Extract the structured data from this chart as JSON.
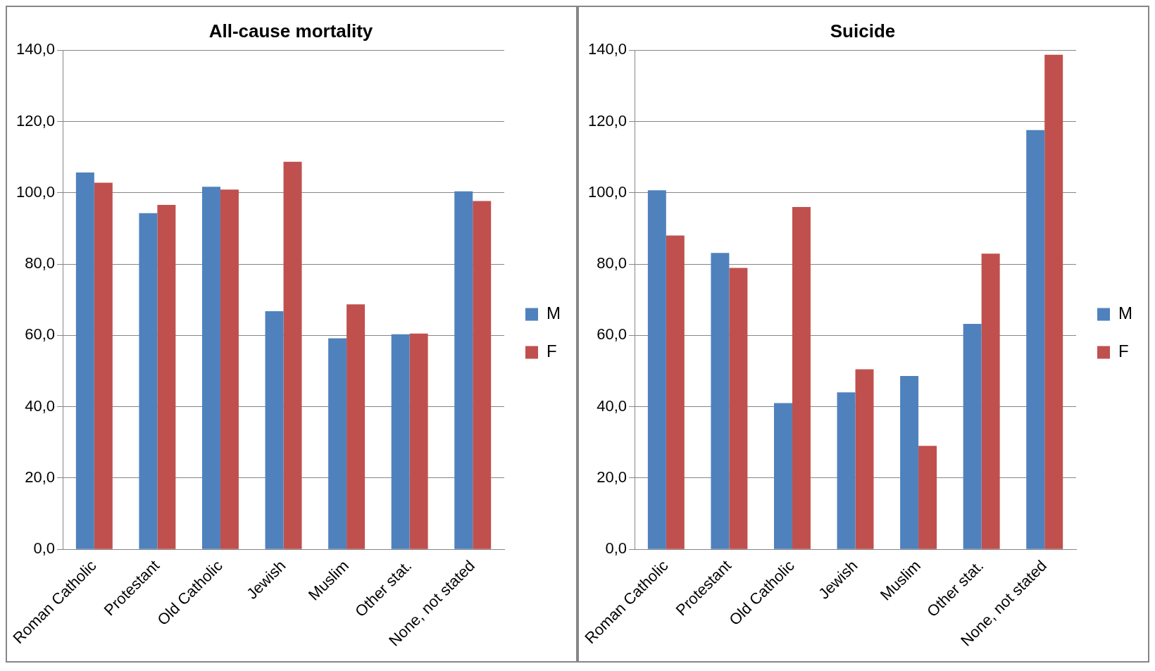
{
  "chart_data": [
    {
      "type": "bar",
      "title": "All-cause mortality",
      "categories": [
        "Roman Catholic",
        "Protestant",
        "Old Catholic",
        "Jewish",
        "Muslim",
        "Other stat.",
        "None, not stated"
      ],
      "series": [
        {
          "name": "M",
          "color": "#4f81bd",
          "values": [
            105.7,
            94.3,
            101.7,
            66.8,
            59.2,
            60.3,
            100.4
          ]
        },
        {
          "name": "F",
          "color": "#c0504d",
          "values": [
            102.8,
            96.6,
            100.9,
            108.7,
            68.7,
            60.5,
            97.7
          ]
        }
      ],
      "ylim": [
        0,
        140
      ],
      "yticks": [
        {
          "value": 0,
          "label": "0,0"
        },
        {
          "value": 20,
          "label": "20,0"
        },
        {
          "value": 40,
          "label": "40,0"
        },
        {
          "value": 60,
          "label": "60,0"
        },
        {
          "value": 80,
          "label": "80,0"
        },
        {
          "value": 100,
          "label": "100,0"
        },
        {
          "value": 120,
          "label": "120,0"
        },
        {
          "value": 140,
          "label": "140,0"
        }
      ],
      "grid": "y",
      "legend": "right"
    },
    {
      "type": "bar",
      "title": "Suicide",
      "categories": [
        "Roman Catholic",
        "Protestant",
        "Old Catholic",
        "Jewish",
        "Muslim",
        "Other stat.",
        "None, not stated"
      ],
      "series": [
        {
          "name": "M",
          "color": "#4f81bd",
          "values": [
            100.7,
            83.1,
            41.0,
            44.0,
            48.6,
            63.2,
            117.6
          ]
        },
        {
          "name": "F",
          "color": "#c0504d",
          "values": [
            88.0,
            78.9,
            96.0,
            50.5,
            29.0,
            82.9,
            138.7
          ]
        }
      ],
      "ylim": [
        0,
        140
      ],
      "yticks": [
        {
          "value": 0,
          "label": "0,0"
        },
        {
          "value": 20,
          "label": "20,0"
        },
        {
          "value": 40,
          "label": "40,0"
        },
        {
          "value": 60,
          "label": "60,0"
        },
        {
          "value": 80,
          "label": "80,0"
        },
        {
          "value": 100,
          "label": "100,0"
        },
        {
          "value": 120,
          "label": "120,0"
        },
        {
          "value": 140,
          "label": "140,0"
        }
      ],
      "grid": "y",
      "legend": "right"
    }
  ]
}
